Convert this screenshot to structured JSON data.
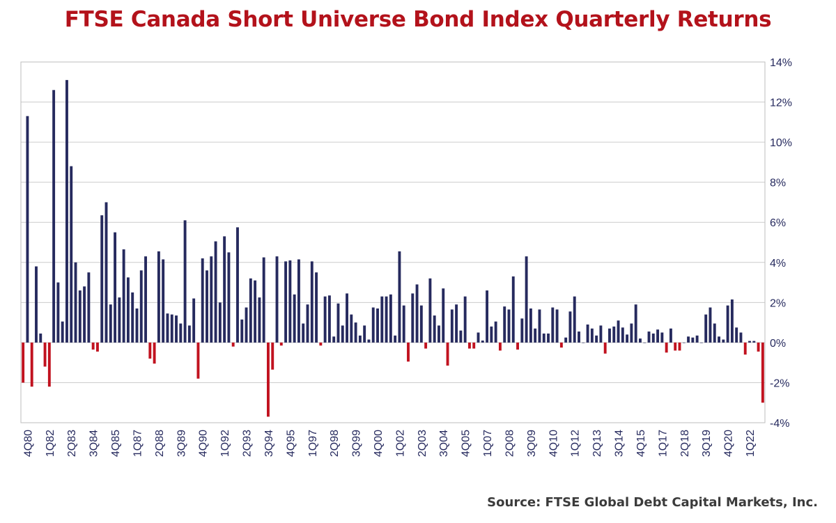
{
  "title": "FTSE Canada Short Universe Bond Index Quarterly Returns",
  "source": "Source: FTSE Global Debt Capital Markets, Inc.",
  "colors": {
    "positive": "#262a5e",
    "negative": "#c1121f",
    "title": "#b3121b",
    "grid": "#cccccc",
    "axis_text": "#262a5e"
  },
  "chart_data": {
    "type": "bar",
    "title": "FTSE Canada Short Universe Bond Index Quarterly Returns",
    "xlabel": "",
    "ylabel": "",
    "ylim": [
      -4,
      14
    ],
    "y_ticks": [
      "-4%",
      "-2%",
      "0%",
      "2%",
      "4%",
      "6%",
      "8%",
      "10%",
      "12%",
      "14%"
    ],
    "y_axis_side": "right",
    "grid": true,
    "legend": "none",
    "x_start": "3Q80",
    "x_tick_labels": [
      "4Q80",
      "1Q82",
      "2Q83",
      "3Q84",
      "4Q85",
      "1Q87",
      "2Q88",
      "3Q89",
      "4Q90",
      "1Q92",
      "2Q93",
      "3Q94",
      "4Q95",
      "1Q97",
      "2Q98",
      "3Q99",
      "4Q00",
      "1Q02",
      "2Q03",
      "3Q04",
      "4Q05",
      "1Q07",
      "2Q08",
      "3Q09",
      "4Q10",
      "1Q12",
      "2Q13",
      "3Q14",
      "4Q15",
      "1Q17",
      "2Q18",
      "3Q19",
      "4Q20",
      "1Q22"
    ],
    "values": [
      -2.0,
      11.3,
      -2.2,
      3.8,
      0.45,
      -1.2,
      -2.2,
      12.6,
      3.0,
      1.05,
      13.1,
      8.8,
      4.0,
      2.6,
      2.8,
      3.5,
      -0.35,
      -0.45,
      6.35,
      7.0,
      1.9,
      5.5,
      2.25,
      4.65,
      3.25,
      2.5,
      1.7,
      3.6,
      4.3,
      -0.8,
      -1.05,
      4.55,
      4.15,
      1.45,
      1.4,
      1.35,
      0.95,
      6.1,
      0.85,
      2.2,
      -1.8,
      4.2,
      3.6,
      4.3,
      5.05,
      2.0,
      5.3,
      4.5,
      -0.2,
      5.75,
      1.15,
      1.75,
      3.2,
      3.1,
      2.25,
      4.25,
      -3.7,
      -1.35,
      4.3,
      -0.15,
      4.05,
      4.1,
      2.4,
      4.15,
      0.95,
      1.9,
      4.05,
      3.5,
      -0.15,
      2.3,
      2.35,
      0.3,
      1.95,
      0.85,
      2.45,
      1.4,
      1.0,
      0.35,
      0.85,
      0.15,
      1.75,
      1.7,
      2.3,
      2.3,
      2.4,
      0.35,
      4.55,
      1.85,
      -0.95,
      2.45,
      2.9,
      1.85,
      -0.3,
      3.2,
      1.35,
      0.85,
      2.7,
      -1.15,
      1.65,
      1.9,
      0.6,
      2.3,
      -0.3,
      -0.3,
      0.5,
      0.1,
      2.6,
      0.8,
      1.05,
      -0.4,
      1.8,
      1.65,
      3.3,
      -0.35,
      1.2,
      4.3,
      1.7,
      0.7,
      1.65,
      0.45,
      0.45,
      1.75,
      1.65,
      -0.25,
      0.25,
      1.55,
      2.3,
      0.55,
      0.0,
      0.9,
      0.7,
      0.35,
      0.85,
      -0.55,
      0.7,
      0.8,
      1.1,
      0.75,
      0.4,
      0.95,
      1.9,
      0.2,
      0.0,
      0.55,
      0.45,
      0.65,
      0.5,
      -0.5,
      0.7,
      -0.4,
      -0.4,
      0.0,
      0.3,
      0.25,
      0.35,
      0.0,
      1.4,
      1.75,
      0.95,
      0.3,
      0.15,
      1.85,
      2.15,
      0.75,
      0.5,
      -0.6,
      0.08,
      0.08,
      -0.45,
      -3.0
    ]
  }
}
